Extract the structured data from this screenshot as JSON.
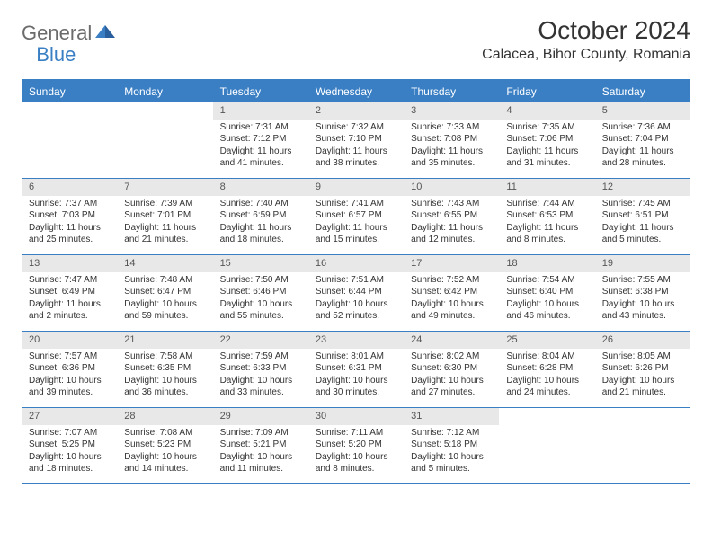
{
  "logo": {
    "general": "General",
    "blue": "Blue"
  },
  "title": "October 2024",
  "location": "Calacea, Bihor County, Romania",
  "colors": {
    "accent": "#3a7fc4",
    "header_text": "#ffffff",
    "daynum_bg": "#e8e8e8",
    "text": "#333333",
    "logo_gray": "#6b6b6b"
  },
  "day_names": [
    "Sunday",
    "Monday",
    "Tuesday",
    "Wednesday",
    "Thursday",
    "Friday",
    "Saturday"
  ],
  "weeks": [
    [
      {
        "n": "",
        "sunrise": "",
        "sunset": "",
        "daylight": ""
      },
      {
        "n": "",
        "sunrise": "",
        "sunset": "",
        "daylight": ""
      },
      {
        "n": "1",
        "sunrise": "Sunrise: 7:31 AM",
        "sunset": "Sunset: 7:12 PM",
        "daylight": "Daylight: 11 hours and 41 minutes."
      },
      {
        "n": "2",
        "sunrise": "Sunrise: 7:32 AM",
        "sunset": "Sunset: 7:10 PM",
        "daylight": "Daylight: 11 hours and 38 minutes."
      },
      {
        "n": "3",
        "sunrise": "Sunrise: 7:33 AM",
        "sunset": "Sunset: 7:08 PM",
        "daylight": "Daylight: 11 hours and 35 minutes."
      },
      {
        "n": "4",
        "sunrise": "Sunrise: 7:35 AM",
        "sunset": "Sunset: 7:06 PM",
        "daylight": "Daylight: 11 hours and 31 minutes."
      },
      {
        "n": "5",
        "sunrise": "Sunrise: 7:36 AM",
        "sunset": "Sunset: 7:04 PM",
        "daylight": "Daylight: 11 hours and 28 minutes."
      }
    ],
    [
      {
        "n": "6",
        "sunrise": "Sunrise: 7:37 AM",
        "sunset": "Sunset: 7:03 PM",
        "daylight": "Daylight: 11 hours and 25 minutes."
      },
      {
        "n": "7",
        "sunrise": "Sunrise: 7:39 AM",
        "sunset": "Sunset: 7:01 PM",
        "daylight": "Daylight: 11 hours and 21 minutes."
      },
      {
        "n": "8",
        "sunrise": "Sunrise: 7:40 AM",
        "sunset": "Sunset: 6:59 PM",
        "daylight": "Daylight: 11 hours and 18 minutes."
      },
      {
        "n": "9",
        "sunrise": "Sunrise: 7:41 AM",
        "sunset": "Sunset: 6:57 PM",
        "daylight": "Daylight: 11 hours and 15 minutes."
      },
      {
        "n": "10",
        "sunrise": "Sunrise: 7:43 AM",
        "sunset": "Sunset: 6:55 PM",
        "daylight": "Daylight: 11 hours and 12 minutes."
      },
      {
        "n": "11",
        "sunrise": "Sunrise: 7:44 AM",
        "sunset": "Sunset: 6:53 PM",
        "daylight": "Daylight: 11 hours and 8 minutes."
      },
      {
        "n": "12",
        "sunrise": "Sunrise: 7:45 AM",
        "sunset": "Sunset: 6:51 PM",
        "daylight": "Daylight: 11 hours and 5 minutes."
      }
    ],
    [
      {
        "n": "13",
        "sunrise": "Sunrise: 7:47 AM",
        "sunset": "Sunset: 6:49 PM",
        "daylight": "Daylight: 11 hours and 2 minutes."
      },
      {
        "n": "14",
        "sunrise": "Sunrise: 7:48 AM",
        "sunset": "Sunset: 6:47 PM",
        "daylight": "Daylight: 10 hours and 59 minutes."
      },
      {
        "n": "15",
        "sunrise": "Sunrise: 7:50 AM",
        "sunset": "Sunset: 6:46 PM",
        "daylight": "Daylight: 10 hours and 55 minutes."
      },
      {
        "n": "16",
        "sunrise": "Sunrise: 7:51 AM",
        "sunset": "Sunset: 6:44 PM",
        "daylight": "Daylight: 10 hours and 52 minutes."
      },
      {
        "n": "17",
        "sunrise": "Sunrise: 7:52 AM",
        "sunset": "Sunset: 6:42 PM",
        "daylight": "Daylight: 10 hours and 49 minutes."
      },
      {
        "n": "18",
        "sunrise": "Sunrise: 7:54 AM",
        "sunset": "Sunset: 6:40 PM",
        "daylight": "Daylight: 10 hours and 46 minutes."
      },
      {
        "n": "19",
        "sunrise": "Sunrise: 7:55 AM",
        "sunset": "Sunset: 6:38 PM",
        "daylight": "Daylight: 10 hours and 43 minutes."
      }
    ],
    [
      {
        "n": "20",
        "sunrise": "Sunrise: 7:57 AM",
        "sunset": "Sunset: 6:36 PM",
        "daylight": "Daylight: 10 hours and 39 minutes."
      },
      {
        "n": "21",
        "sunrise": "Sunrise: 7:58 AM",
        "sunset": "Sunset: 6:35 PM",
        "daylight": "Daylight: 10 hours and 36 minutes."
      },
      {
        "n": "22",
        "sunrise": "Sunrise: 7:59 AM",
        "sunset": "Sunset: 6:33 PM",
        "daylight": "Daylight: 10 hours and 33 minutes."
      },
      {
        "n": "23",
        "sunrise": "Sunrise: 8:01 AM",
        "sunset": "Sunset: 6:31 PM",
        "daylight": "Daylight: 10 hours and 30 minutes."
      },
      {
        "n": "24",
        "sunrise": "Sunrise: 8:02 AM",
        "sunset": "Sunset: 6:30 PM",
        "daylight": "Daylight: 10 hours and 27 minutes."
      },
      {
        "n": "25",
        "sunrise": "Sunrise: 8:04 AM",
        "sunset": "Sunset: 6:28 PM",
        "daylight": "Daylight: 10 hours and 24 minutes."
      },
      {
        "n": "26",
        "sunrise": "Sunrise: 8:05 AM",
        "sunset": "Sunset: 6:26 PM",
        "daylight": "Daylight: 10 hours and 21 minutes."
      }
    ],
    [
      {
        "n": "27",
        "sunrise": "Sunrise: 7:07 AM",
        "sunset": "Sunset: 5:25 PM",
        "daylight": "Daylight: 10 hours and 18 minutes."
      },
      {
        "n": "28",
        "sunrise": "Sunrise: 7:08 AM",
        "sunset": "Sunset: 5:23 PM",
        "daylight": "Daylight: 10 hours and 14 minutes."
      },
      {
        "n": "29",
        "sunrise": "Sunrise: 7:09 AM",
        "sunset": "Sunset: 5:21 PM",
        "daylight": "Daylight: 10 hours and 11 minutes."
      },
      {
        "n": "30",
        "sunrise": "Sunrise: 7:11 AM",
        "sunset": "Sunset: 5:20 PM",
        "daylight": "Daylight: 10 hours and 8 minutes."
      },
      {
        "n": "31",
        "sunrise": "Sunrise: 7:12 AM",
        "sunset": "Sunset: 5:18 PM",
        "daylight": "Daylight: 10 hours and 5 minutes."
      },
      {
        "n": "",
        "sunrise": "",
        "sunset": "",
        "daylight": ""
      },
      {
        "n": "",
        "sunrise": "",
        "sunset": "",
        "daylight": ""
      }
    ]
  ]
}
